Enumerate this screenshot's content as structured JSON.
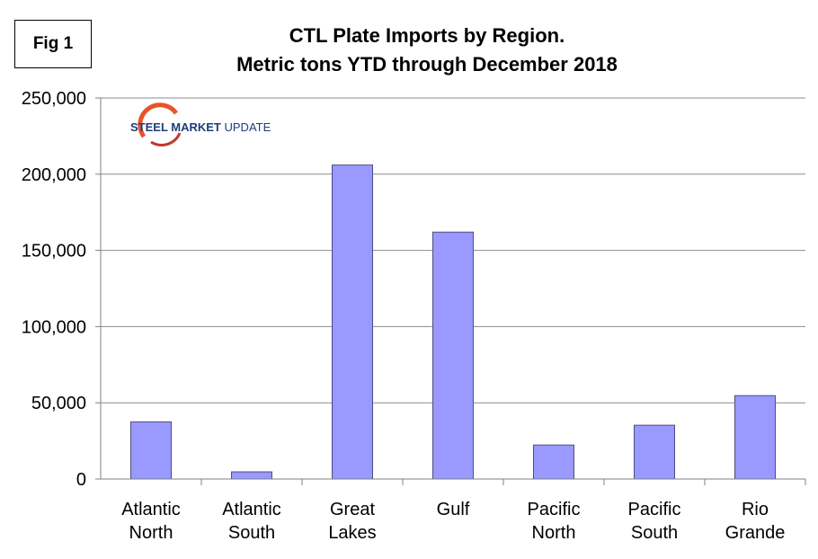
{
  "figure_label": "Fig 1",
  "logo_text": "STEEL MARKET UPDATE",
  "chart_data": {
    "type": "bar",
    "title": [
      "CTL Plate Imports by Region.",
      "Metric tons YTD through December 2018"
    ],
    "xlabel": "",
    "ylabel": "",
    "categories": [
      [
        "Atlantic",
        "North"
      ],
      [
        "Atlantic",
        "South"
      ],
      [
        "Great",
        "Lakes"
      ],
      [
        "Gulf"
      ],
      [
        "Pacific",
        "North"
      ],
      [
        "Pacific",
        "South"
      ],
      [
        "Rio",
        "Grande"
      ]
    ],
    "values": [
      37500,
      4700,
      206000,
      162000,
      22300,
      35300,
      54700
    ],
    "ylim": [
      0,
      250000
    ],
    "yticks": [
      0,
      50000,
      100000,
      150000,
      200000,
      250000
    ],
    "ytick_labels": [
      "0",
      "50,000",
      "100,000",
      "150,000",
      "200,000",
      "250,000"
    ],
    "grid": true,
    "bar_color": "#9999ff",
    "legend": "none"
  }
}
